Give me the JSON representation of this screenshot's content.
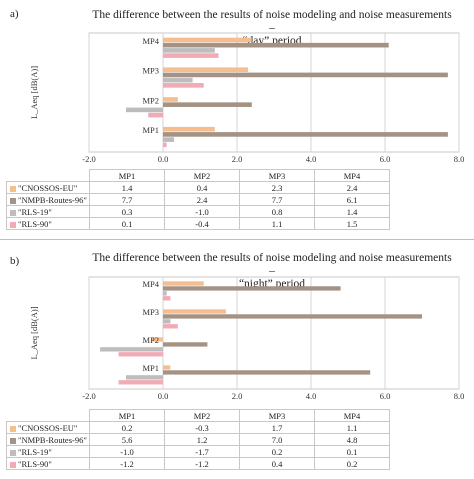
{
  "colors": {
    "CNOSSOS-EU": "#f6bd8f",
    "NMPB-Routes-96": "#a49384",
    "RLS-19": "#bdbdbd",
    "RLS-90": "#f2aab4"
  },
  "panels": [
    {
      "letter": "a)",
      "title_line1": "The difference between the results of noise modeling and noise measurements –",
      "title_line2": "“day” period"
    },
    {
      "letter": "b)",
      "title_line1": "The difference between the results of noise modeling and noise measurements –",
      "title_line2": "“night” period"
    }
  ],
  "chart_data": [
    {
      "type": "bar",
      "orientation": "horizontal",
      "ylabel": "L_Aeq [dB(A)]",
      "xlim": [
        -2.0,
        8.0
      ],
      "xticks": [
        "-2.0",
        "0.0",
        "2.0",
        "4.0",
        "6.0",
        "8.0"
      ],
      "categories": [
        "MP1",
        "MP2",
        "MP3",
        "MP4"
      ],
      "series": [
        {
          "name": "\"CNOSSOS-EU\"",
          "key": "CNOSSOS-EU",
          "values": [
            1.4,
            0.4,
            2.3,
            2.4
          ]
        },
        {
          "name": "\"NMPB-Routes-96\"",
          "key": "NMPB-Routes-96",
          "values": [
            7.7,
            2.4,
            7.7,
            6.1
          ]
        },
        {
          "name": "\"RLS-19\"",
          "key": "RLS-19",
          "values": [
            0.3,
            -1.0,
            0.8,
            1.4
          ]
        },
        {
          "name": "\"RLS-90\"",
          "key": "RLS-90",
          "values": [
            0.1,
            -0.4,
            1.1,
            1.5
          ]
        }
      ],
      "display": [
        [
          "1.4",
          "0.4",
          "2.3",
          "2.4"
        ],
        [
          "7.7",
          "2.4",
          "7.7",
          "6.1"
        ],
        [
          "0.3",
          "-1.0",
          "0.8",
          "1.4"
        ],
        [
          "0.1",
          "-0.4",
          "1.1",
          "1.5"
        ]
      ]
    },
    {
      "type": "bar",
      "orientation": "horizontal",
      "ylabel": "L_Aeq [dB(A)]",
      "xlim": [
        -2.0,
        8.0
      ],
      "xticks": [
        "-2.0",
        "0.0",
        "2.0",
        "4.0",
        "6.0",
        "8.0"
      ],
      "categories": [
        "MP1",
        "MP2",
        "MP3",
        "MP4"
      ],
      "series": [
        {
          "name": "\"CNOSSOS-EU\"",
          "key": "CNOSSOS-EU",
          "values": [
            0.2,
            -0.3,
            1.7,
            1.1
          ]
        },
        {
          "name": "\"NMPB-Routes-96\"",
          "key": "NMPB-Routes-96",
          "values": [
            5.6,
            1.2,
            7.0,
            4.8
          ]
        },
        {
          "name": "\"RLS-19\"",
          "key": "RLS-19",
          "values": [
            -1.0,
            -1.7,
            0.2,
            0.1
          ]
        },
        {
          "name": "\"RLS-90\"",
          "key": "RLS-90",
          "values": [
            -1.2,
            -1.2,
            0.4,
            0.2
          ]
        }
      ],
      "display": [
        [
          "0.2",
          "-0.3",
          "1.7",
          "1.1"
        ],
        [
          "5.6",
          "1.2",
          "7.0",
          "4.8"
        ],
        [
          "-1.0",
          "-1.7",
          "0.2",
          "0.1"
        ],
        [
          "-1.2",
          "-1.2",
          "0.4",
          "0.2"
        ]
      ]
    }
  ]
}
